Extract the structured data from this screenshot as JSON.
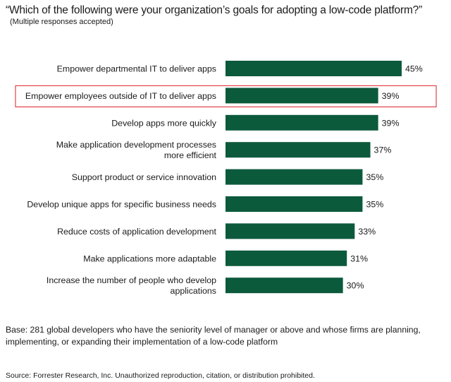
{
  "title": "“Which of the following were your organization’s goals for adopting a low-code platform?”",
  "subtitle": "(Multiple responses accepted)",
  "base_note": "Base: 281 global developers who have the seniority level of manager or above and whose firms are planning, implementing, or expanding their implementation of a low-code platform",
  "source": "Source: Forrester Research, Inc. Unauthorized reproduction, citation, or distribution prohibited.",
  "colors": {
    "bar": "#0c5a3c",
    "highlight": "#e0424a"
  },
  "chart_data": {
    "type": "bar",
    "orientation": "horizontal",
    "categories": [
      "Empower departmental IT to deliver apps",
      "Empower employees outside of IT to deliver apps",
      "Develop apps more quickly",
      "Make application development processes more efficient",
      "Support product or service innovation",
      "Develop unique apps for specific business needs",
      "Reduce costs of application development",
      "Make applications more adaptable",
      "Increase the number of people who develop applications"
    ],
    "label_lines": [
      [
        "Empower departmental IT to deliver apps"
      ],
      [
        "Empower employees outside of IT to deliver apps"
      ],
      [
        "Develop apps more quickly"
      ],
      [
        "Make application development processes",
        "more efficient"
      ],
      [
        "Support product or service innovation"
      ],
      [
        "Develop unique apps for specific business needs"
      ],
      [
        "Reduce costs of application development"
      ],
      [
        "Make applications more adaptable"
      ],
      [
        "Increase the number of people who develop",
        "applications"
      ]
    ],
    "values": [
      45,
      39,
      39,
      37,
      35,
      35,
      33,
      31,
      30
    ],
    "data_labels": [
      "45%",
      "39%",
      "39%",
      "37%",
      "35%",
      "35%",
      "33%",
      "31%",
      "30%"
    ],
    "unit": "%",
    "highlighted_index": 1,
    "xlim": [
      0,
      45
    ],
    "xlabel": "",
    "ylabel": ""
  }
}
